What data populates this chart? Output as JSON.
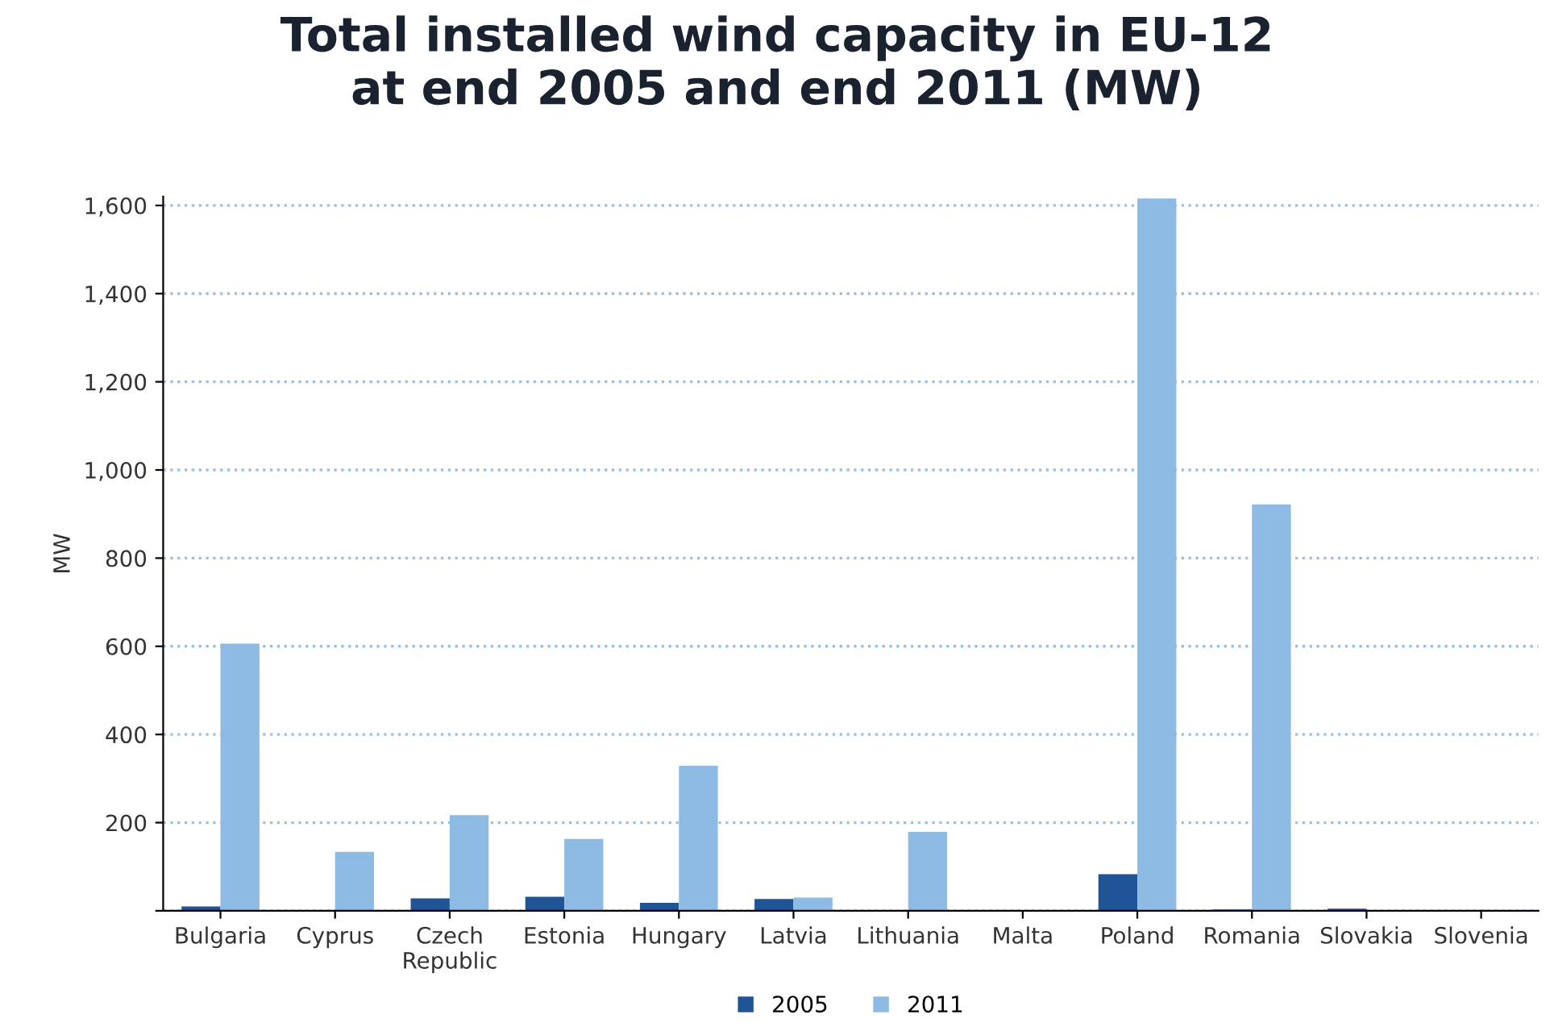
{
  "chart_data": {
    "type": "bar",
    "title": "Total installed wind capacity in EU-12\nat end 2005 and end 2011 (MW)",
    "ylabel": "MW",
    "categories": [
      "Bulgaria",
      "Cyprus",
      "Czech\nRepublic",
      "Estonia",
      "Hungary",
      "Latvia",
      "Lithuania",
      "Malta",
      "Poland",
      "Romania",
      "Slovakia",
      "Slovenia"
    ],
    "series": [
      {
        "name": "2005",
        "color": "#1f5596",
        "values": [
          10,
          0,
          28,
          32,
          18,
          27,
          1,
          0,
          83,
          3,
          5,
          0
        ]
      },
      {
        "name": "2011",
        "color": "#8dbbe3",
        "values": [
          606,
          134,
          217,
          163,
          329,
          30,
          179,
          0,
          1616,
          922,
          null,
          0
        ]
      }
    ],
    "ylim": [
      0,
      1620
    ],
    "yticks": [
      {
        "value": 0,
        "label": null
      },
      200,
      400,
      600,
      800,
      {
        "value": 1000,
        "label": "1,000"
      },
      {
        "value": 1200,
        "label": "1,200"
      },
      {
        "value": 1400,
        "label": "1,400"
      },
      {
        "value": 1600,
        "label": "1,600"
      }
    ],
    "grid": "y",
    "legend": "bottom"
  }
}
